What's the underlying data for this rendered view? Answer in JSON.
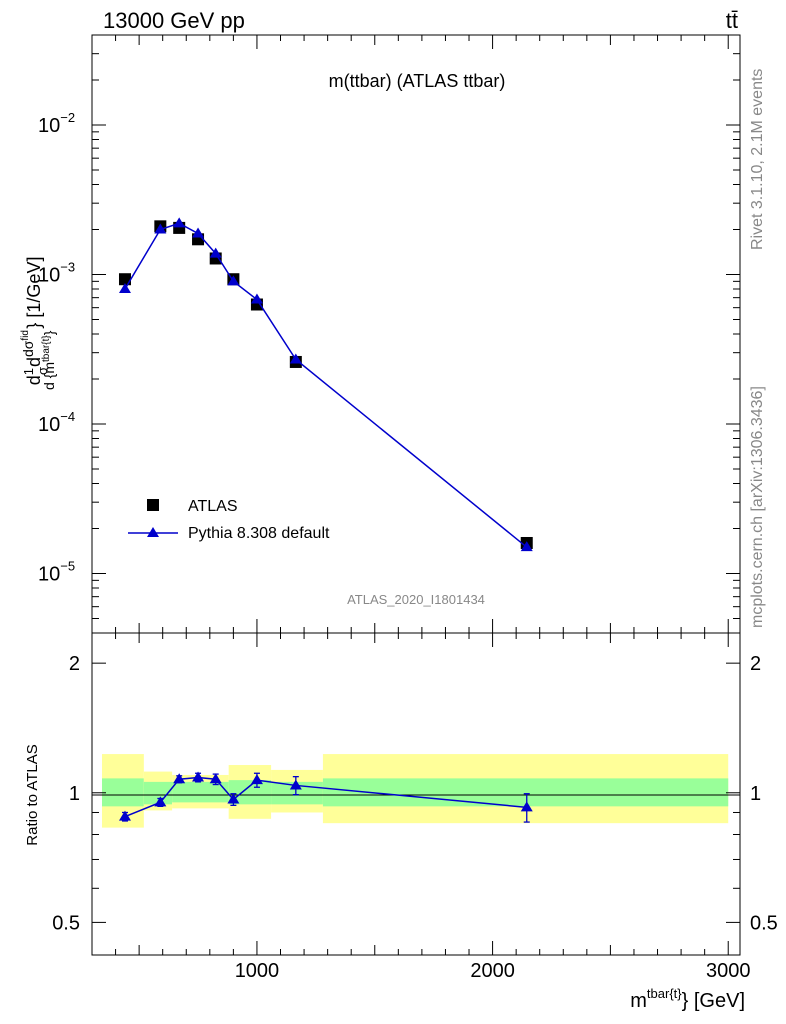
{
  "header": {
    "collision": "13000 GeV pp",
    "process": "tt̄"
  },
  "side": {
    "rivet": "Rivet 3.1.10,  2.1M events",
    "site": "mcplots.cern.ch [arXiv:1306.3436]"
  },
  "chart_data": [
    {
      "type": "line",
      "title": "m(ttbar) (ATLAS ttbar)",
      "analysis_id": "ATLAS_2020_I1801434",
      "ylabel": "d 1/σ dσ^fid / d {m^tbar{t}} [1/GeV]",
      "yscale": "log",
      "ylim": [
        4e-06,
        0.04
      ],
      "xlim": [
        300,
        3050
      ],
      "yticks": [
        {
          "value": 1e-05,
          "base": "10",
          "exp": "−5"
        },
        {
          "value": 0.0001,
          "base": "10",
          "exp": "−4"
        },
        {
          "value": 0.001,
          "base": "10",
          "exp": "−3"
        },
        {
          "value": 0.01,
          "base": "10",
          "exp": "−2"
        }
      ],
      "legend": {
        "position": "bottom-left",
        "entries": [
          "ATLAS",
          "Pythia 8.308 default"
        ]
      },
      "series": [
        {
          "name": "ATLAS",
          "marker": "square",
          "color": "#000000",
          "x": [
            440,
            590,
            670,
            750,
            825,
            900,
            1000,
            1165,
            2145
          ],
          "y": [
            0.00093,
            0.0021,
            0.00205,
            0.00172,
            0.00128,
            0.00093,
            0.00063,
            0.00026,
            1.6e-05
          ]
        },
        {
          "name": "Pythia 8.308 default",
          "marker": "triangle",
          "color": "#0000cc",
          "x": [
            440,
            590,
            670,
            750,
            825,
            900,
            1000,
            1165,
            2145
          ],
          "y": [
            0.0008,
            0.002,
            0.0022,
            0.00188,
            0.00138,
            0.0009,
            0.00068,
            0.00027,
            1.5e-05
          ]
        }
      ]
    },
    {
      "type": "line",
      "ylabel": "Ratio to ATLAS",
      "xlabel_base": "m",
      "xlabel_sup": "tbar{t}",
      "xlabel_unit": "} [GeV]",
      "ylim": [
        0.42,
        2.35
      ],
      "yscale": "log",
      "xlim": [
        300,
        3050
      ],
      "xticks": [
        1000,
        2000,
        3000
      ],
      "yticks": [
        0.5,
        1,
        2
      ],
      "reference": 1,
      "bands": [
        {
          "x0": 300,
          "x1": 520,
          "stat": [
            0.93,
            1.08
          ],
          "syst": [
            0.83,
            1.23
          ]
        },
        {
          "x0": 520,
          "x1": 640,
          "stat": [
            0.94,
            1.06
          ],
          "syst": [
            0.91,
            1.12
          ]
        },
        {
          "x0": 640,
          "x1": 880,
          "stat": [
            0.95,
            1.06
          ],
          "syst": [
            0.92,
            1.1
          ]
        },
        {
          "x0": 880,
          "x1": 1060,
          "stat": [
            0.94,
            1.07
          ],
          "syst": [
            0.87,
            1.16
          ]
        },
        {
          "x0": 1060,
          "x1": 1280,
          "stat": [
            0.94,
            1.06
          ],
          "syst": [
            0.9,
            1.13
          ]
        },
        {
          "x0": 1280,
          "x1": 3000,
          "stat": [
            0.93,
            1.08
          ],
          "syst": [
            0.85,
            1.23
          ]
        }
      ],
      "series": [
        {
          "name": "Pythia 8.308 default",
          "color": "#0000cc",
          "x": [
            440,
            590,
            670,
            750,
            825,
            900,
            1000,
            1165,
            2145
          ],
          "y": [
            0.88,
            0.95,
            1.075,
            1.085,
            1.075,
            0.965,
            1.07,
            1.04,
            0.925
          ],
          "err": [
            0.02,
            0.02,
            0.02,
            0.025,
            0.03,
            0.03,
            0.04,
            0.05,
            0.07
          ]
        }
      ]
    }
  ]
}
